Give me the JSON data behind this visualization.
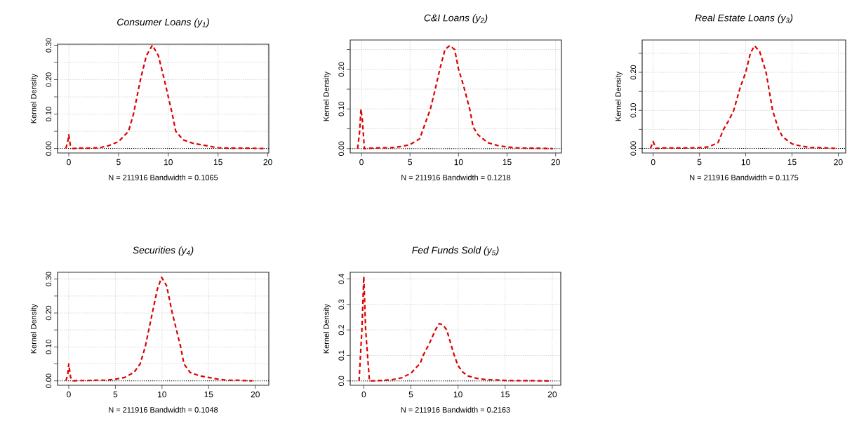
{
  "chart_data": [
    {
      "type": "line",
      "title": "*Consumer Loans* (y$_{1}$)",
      "xlabel": "N = 211916   Bandwidth = 0.1065",
      "ylabel": "Kernel Density",
      "xlim": [
        -1.13,
        20.1
      ],
      "ylim": [
        -0.013,
        0.303
      ],
      "xticks": [
        0,
        5,
        10,
        15,
        20
      ],
      "yticks": [
        {
          "value": 0,
          "label": "0.00"
        },
        {
          "value": 0.05,
          "label": null
        },
        {
          "value": 0.1,
          "label": "0.10"
        },
        {
          "value": 0.15,
          "label": null
        },
        {
          "value": 0.2,
          "label": "0.20"
        },
        {
          "value": 0.25,
          "label": null
        },
        {
          "value": 0.3,
          "label": "0.30"
        }
      ],
      "grid": true,
      "line_style": "dashed",
      "marker": "none",
      "ref_lines": [
        {
          "axis": "y",
          "value": 0,
          "color": "#000000",
          "line_style": "dotted"
        }
      ],
      "series": [
        {
          "color": "#dd0000",
          "x": [
            -0.3,
            -0.1,
            0,
            0.15,
            0.4,
            1,
            2,
            3,
            4,
            5,
            6,
            6.5,
            7.2,
            7.8,
            8.4,
            9,
            9.6,
            10.4,
            10.75,
            11.5,
            12.5,
            13.5,
            15,
            16,
            17,
            18,
            19.6
          ],
          "values": [
            0,
            0.02,
            0.04,
            0.01,
            0,
            0.001,
            0.001,
            0.002,
            0.008,
            0.02,
            0.05,
            0.1,
            0.2,
            0.27,
            0.3,
            0.27,
            0.2,
            0.1,
            0.05,
            0.025,
            0.015,
            0.01,
            0.002,
            0.001,
            0.001,
            0.001,
            0
          ]
        }
      ]
    },
    {
      "type": "line",
      "title": "*C&I Loans* (y$_{2}$)",
      "xlabel": "N = 211916   Bandwidth = 0.1218",
      "ylabel": "Kernel Density",
      "xlim": [
        -1.16,
        20.6
      ],
      "ylim": [
        -0.011,
        0.274
      ],
      "xticks": [
        0,
        5,
        10,
        15,
        20
      ],
      "yticks": [
        {
          "value": 0,
          "label": "0.00"
        },
        {
          "value": 0.05,
          "label": null
        },
        {
          "value": 0.1,
          "label": "0.10"
        },
        {
          "value": 0.15,
          "label": null
        },
        {
          "value": 0.2,
          "label": "0.20"
        },
        {
          "value": 0.25,
          "label": null
        }
      ],
      "grid": true,
      "line_style": "dashed",
      "marker": "none",
      "ref_lines": [
        {
          "axis": "y",
          "value": 0,
          "color": "#000000",
          "line_style": "dotted"
        }
      ],
      "series": [
        {
          "color": "#dd0000",
          "x": [
            -0.4,
            -0.2,
            -0.05,
            0.1,
            0.3,
            1,
            2,
            3,
            4,
            5,
            6,
            7.1,
            7.5,
            8.07,
            8.6,
            9.1,
            9.6,
            10,
            10.5,
            11.15,
            11.5,
            12,
            13,
            14,
            15,
            16,
            17,
            18,
            19.7
          ],
          "values": [
            0,
            0.04,
            0.1,
            0.07,
            0,
            0.001,
            0.002,
            0.002,
            0.005,
            0.01,
            0.025,
            0.1,
            0.14,
            0.2,
            0.25,
            0.26,
            0.25,
            0.2,
            0.16,
            0.1,
            0.055,
            0.035,
            0.015,
            0.008,
            0.004,
            0.002,
            0.001,
            0.001,
            0
          ]
        }
      ]
    },
    {
      "type": "line",
      "title": "*Real Estate Loans* (y$_{3}$)",
      "xlabel": "N = 211916   Bandwidth = 0.1175",
      "ylabel": "Kernel Density",
      "xlim": [
        -1.19,
        20.8
      ],
      "ylim": [
        -0.012,
        0.285
      ],
      "xticks": [
        0,
        5,
        10,
        15,
        20
      ],
      "yticks": [
        {
          "value": 0,
          "label": "0.00"
        },
        {
          "value": 0.05,
          "label": null
        },
        {
          "value": 0.1,
          "label": "0.10"
        },
        {
          "value": 0.15,
          "label": null
        },
        {
          "value": 0.2,
          "label": "0.20"
        },
        {
          "value": 0.25,
          "label": null
        }
      ],
      "grid": true,
      "line_style": "dashed",
      "marker": "none",
      "ref_lines": [
        {
          "axis": "y",
          "value": 0,
          "color": "#000000",
          "line_style": "dotted"
        }
      ],
      "series": [
        {
          "color": "#dd0000",
          "x": [
            -0.3,
            0,
            0.3,
            1,
            2,
            3,
            4,
            5,
            6,
            7,
            7.6,
            8.2,
            8.7,
            9.4,
            10,
            10.5,
            10.95,
            11.5,
            12.2,
            12.9,
            13.55,
            14,
            15,
            16,
            17,
            18,
            19.7
          ],
          "values": [
            0,
            0.018,
            0,
            0.001,
            0.001,
            0.001,
            0.001,
            0.002,
            0.004,
            0.015,
            0.05,
            0.075,
            0.1,
            0.16,
            0.2,
            0.25,
            0.27,
            0.255,
            0.2,
            0.1,
            0.05,
            0.03,
            0.012,
            0.006,
            0.002,
            0.002,
            0
          ]
        }
      ]
    },
    {
      "type": "line",
      "title": "*Securities* (y$_{4}$)",
      "xlabel": "N = 211916   Bandwidth = 0.1048",
      "ylabel": "Kernel Density",
      "xlim": [
        -1.2,
        21.45
      ],
      "ylim": [
        -0.013,
        0.32
      ],
      "xticks": [
        0,
        5,
        10,
        15,
        20
      ],
      "yticks": [
        {
          "value": 0,
          "label": "0.00"
        },
        {
          "value": 0.05,
          "label": null
        },
        {
          "value": 0.1,
          "label": "0.10"
        },
        {
          "value": 0.15,
          "label": null
        },
        {
          "value": 0.2,
          "label": "0.20"
        },
        {
          "value": 0.25,
          "label": null
        },
        {
          "value": 0.3,
          "label": "0.30"
        }
      ],
      "grid": true,
      "line_style": "dashed",
      "marker": "none",
      "ref_lines": [
        {
          "axis": "y",
          "value": 0,
          "color": "#000000",
          "line_style": "dotted"
        }
      ],
      "series": [
        {
          "color": "#dd0000",
          "x": [
            -0.3,
            -0.1,
            0,
            0.2,
            0.5,
            1,
            2,
            3,
            4,
            5,
            6,
            7,
            7.65,
            8.2,
            8.96,
            9.5,
            9.96,
            10.5,
            11.1,
            12,
            12.35,
            13,
            14,
            15,
            16,
            17,
            18,
            19.7
          ],
          "values": [
            0,
            0.02,
            0.05,
            0.01,
            0,
            0.001,
            0.001,
            0.002,
            0.002,
            0.005,
            0.01,
            0.025,
            0.05,
            0.1,
            0.2,
            0.27,
            0.305,
            0.28,
            0.2,
            0.1,
            0.05,
            0.025,
            0.015,
            0.01,
            0.005,
            0.002,
            0.002,
            0
          ]
        }
      ]
    },
    {
      "type": "line",
      "title": "*Fed Funds Sold* (y$_{5}$)",
      "xlabel": "N = 211916   Bandwidth = 0.2163",
      "ylabel": "Kernel Density",
      "xlim": [
        -1.44,
        20.9
      ],
      "ylim": [
        -0.017,
        0.426
      ],
      "xticks": [
        0,
        5,
        10,
        15,
        20
      ],
      "yticks": [
        {
          "value": 0,
          "label": "0.0"
        },
        0.1,
        0.2,
        0.3,
        0.4
      ],
      "grid": true,
      "line_style": "dashed",
      "marker": "none",
      "ref_lines": [
        {
          "axis": "y",
          "value": 0,
          "color": "#000000",
          "line_style": "dotted"
        }
      ],
      "series": [
        {
          "color": "#dd0000",
          "x": [
            -0.5,
            -0.2,
            0,
            0.2,
            0.6,
            1.5,
            2,
            3,
            4,
            5,
            6,
            6.3,
            7,
            7.6,
            8,
            8.4,
            8.8,
            9.6,
            10,
            10.5,
            11,
            12,
            13,
            14,
            15,
            16,
            17,
            18,
            19.7
          ],
          "values": [
            0,
            0.2,
            0.41,
            0.2,
            0,
            0.001,
            0.002,
            0.005,
            0.012,
            0.03,
            0.07,
            0.1,
            0.15,
            0.2,
            0.225,
            0.22,
            0.2,
            0.1,
            0.06,
            0.035,
            0.02,
            0.01,
            0.005,
            0.004,
            0.002,
            0.001,
            0.001,
            0.001,
            0
          ]
        }
      ]
    }
  ]
}
